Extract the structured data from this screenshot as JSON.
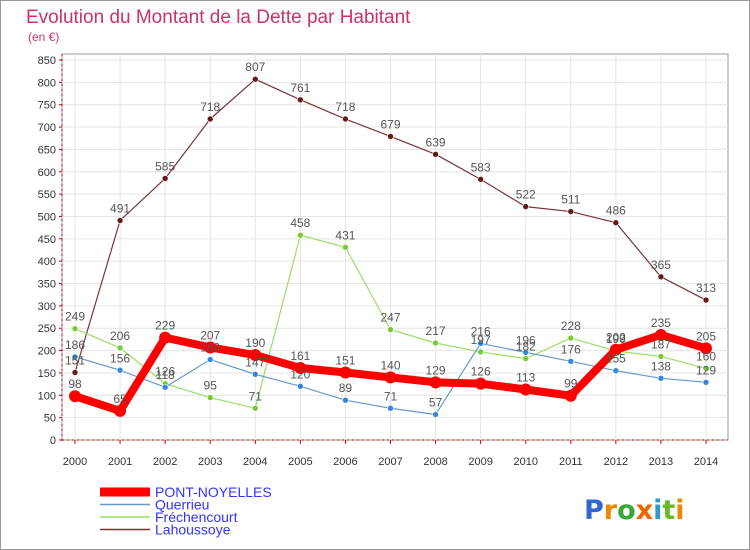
{
  "chart_data": {
    "type": "line",
    "title": "Evolution du Montant de la Dette par Habitant",
    "subtitle": "(en €)",
    "x": [
      "2000",
      "2001",
      "2002",
      "2003",
      "2004",
      "2005",
      "2006",
      "2007",
      "2008",
      "2009",
      "2010",
      "2011",
      "2012",
      "2013",
      "2014"
    ],
    "ylim": [
      0,
      850
    ],
    "yticks": [
      0,
      50,
      100,
      150,
      200,
      250,
      300,
      350,
      400,
      450,
      500,
      550,
      600,
      650,
      700,
      750,
      800,
      850
    ],
    "grid": true,
    "legend_position": "bottom-left",
    "series": [
      {
        "name": "PONT-NOYELLES",
        "color": "#ff0000",
        "marker_color": "#ff0000",
        "values": [
          98,
          65,
          229,
          207,
          190,
          161,
          151,
          140,
          129,
          126,
          113,
          99,
          202,
          235,
          205
        ]
      },
      {
        "name": "Querrieu",
        "color": "#6699cc",
        "marker_color": "#3388dd",
        "values": [
          186,
          156,
          118,
          180,
          147,
          120,
          89,
          71,
          57,
          216,
          196,
          176,
          155,
          138,
          129
        ]
      },
      {
        "name": "Fréchencourt",
        "color": "#99dd66",
        "marker_color": "#77cc33",
        "values": [
          249,
          206,
          126,
          95,
          71,
          458,
          431,
          247,
          217,
          197,
          182,
          228,
          199,
          187,
          160
        ]
      },
      {
        "name": "Lahoussoye",
        "color": "#7a3333",
        "marker_color": "#661a1a",
        "values": [
          151,
          491,
          585,
          718,
          807,
          761,
          718,
          679,
          639,
          583,
          522,
          511,
          486,
          365,
          313
        ]
      }
    ],
    "colors": {
      "title": "#cc3366",
      "axis": "#cc0000",
      "grid": "#e4e4e4",
      "border": "#999999",
      "label": "#555555",
      "legend_text": "#3333ff"
    }
  },
  "logo": {
    "text": "Proxiti"
  }
}
